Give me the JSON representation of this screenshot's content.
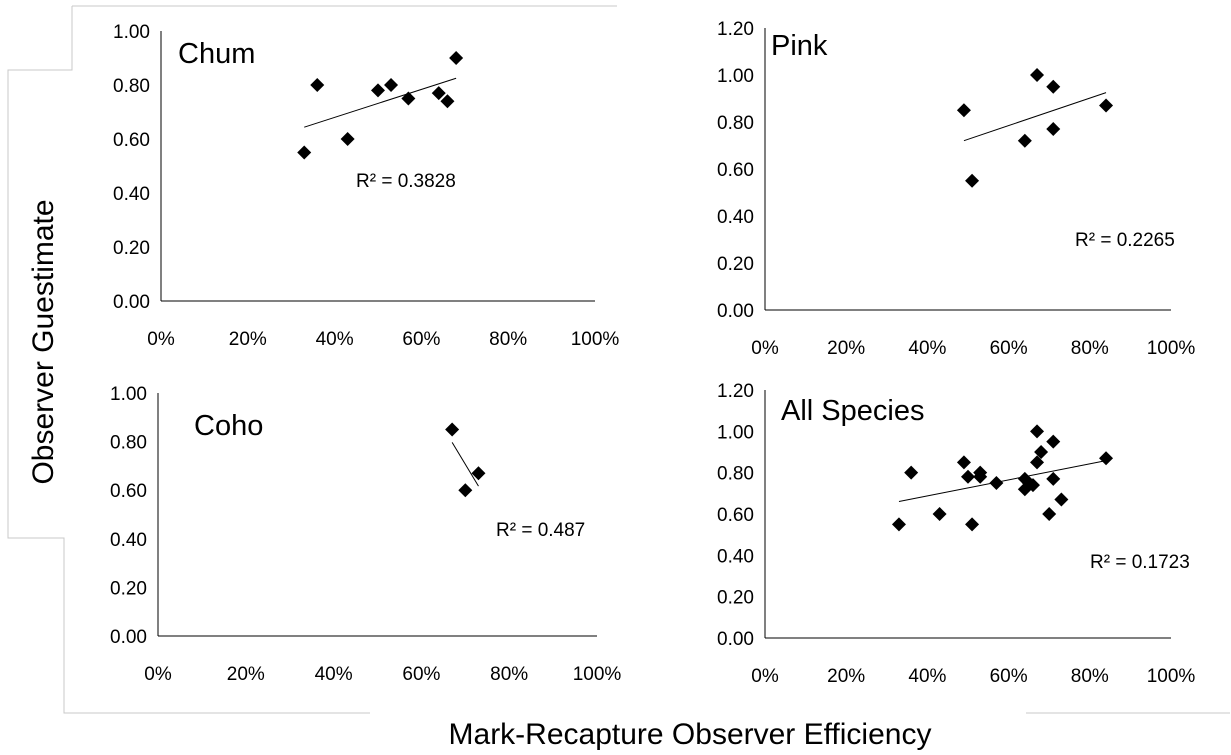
{
  "ylabel": "Observer Guestimate",
  "xlabel": "Mark-Recapture Observer Efficiency",
  "chart_data": [
    {
      "type": "scatter",
      "title": "Chum",
      "annotation": "R² = 0.3828",
      "xlim": [
        0,
        1
      ],
      "ylim": [
        0,
        1
      ],
      "x_ticks": [
        "0%",
        "20%",
        "40%",
        "60%",
        "80%",
        "100%"
      ],
      "y_ticks": [
        "0.00",
        "0.20",
        "0.40",
        "0.60",
        "0.80",
        "1.00"
      ],
      "trendline": true,
      "points": [
        {
          "x": 0.33,
          "y": 0.55
        },
        {
          "x": 0.36,
          "y": 0.8
        },
        {
          "x": 0.43,
          "y": 0.6
        },
        {
          "x": 0.5,
          "y": 0.78
        },
        {
          "x": 0.53,
          "y": 0.8
        },
        {
          "x": 0.57,
          "y": 0.75
        },
        {
          "x": 0.64,
          "y": 0.77
        },
        {
          "x": 0.66,
          "y": 0.74
        },
        {
          "x": 0.68,
          "y": 0.9
        }
      ]
    },
    {
      "type": "scatter",
      "title": "Pink",
      "annotation": "R² = 0.2265",
      "xlim": [
        0,
        1
      ],
      "ylim": [
        0,
        1.2
      ],
      "x_ticks": [
        "0%",
        "20%",
        "40%",
        "60%",
        "80%",
        "100%"
      ],
      "y_ticks": [
        "0.00",
        "0.20",
        "0.40",
        "0.60",
        "0.80",
        "1.00",
        "1.20"
      ],
      "trendline": true,
      "points": [
        {
          "x": 0.49,
          "y": 0.85
        },
        {
          "x": 0.51,
          "y": 0.55
        },
        {
          "x": 0.64,
          "y": 0.72
        },
        {
          "x": 0.67,
          "y": 1.0
        },
        {
          "x": 0.71,
          "y": 0.95
        },
        {
          "x": 0.71,
          "y": 0.77
        },
        {
          "x": 0.84,
          "y": 0.87
        }
      ]
    },
    {
      "type": "scatter",
      "title": "Coho",
      "annotation": "R² = 0.487",
      "xlim": [
        0,
        1
      ],
      "ylim": [
        0,
        1
      ],
      "x_ticks": [
        "0%",
        "20%",
        "40%",
        "60%",
        "80%",
        "100%"
      ],
      "y_ticks": [
        "0.00",
        "0.20",
        "0.40",
        "0.60",
        "0.80",
        "1.00"
      ],
      "trendline": true,
      "points": [
        {
          "x": 0.67,
          "y": 0.85
        },
        {
          "x": 0.7,
          "y": 0.6
        },
        {
          "x": 0.73,
          "y": 0.67
        }
      ]
    },
    {
      "type": "scatter",
      "title": "All Species",
      "annotation": "R² = 0.1723",
      "xlim": [
        0,
        1
      ],
      "ylim": [
        0,
        1.2
      ],
      "x_ticks": [
        "0%",
        "20%",
        "40%",
        "60%",
        "80%",
        "100%"
      ],
      "y_ticks": [
        "0.00",
        "0.20",
        "0.40",
        "0.60",
        "0.80",
        "1.00",
        "1.20"
      ],
      "trendline": true,
      "points": [
        {
          "x": 0.33,
          "y": 0.55
        },
        {
          "x": 0.36,
          "y": 0.8
        },
        {
          "x": 0.43,
          "y": 0.6
        },
        {
          "x": 0.49,
          "y": 0.85
        },
        {
          "x": 0.5,
          "y": 0.78
        },
        {
          "x": 0.51,
          "y": 0.55
        },
        {
          "x": 0.53,
          "y": 0.8
        },
        {
          "x": 0.53,
          "y": 0.78
        },
        {
          "x": 0.57,
          "y": 0.75
        },
        {
          "x": 0.64,
          "y": 0.77
        },
        {
          "x": 0.64,
          "y": 0.72
        },
        {
          "x": 0.65,
          "y": 0.75
        },
        {
          "x": 0.66,
          "y": 0.74
        },
        {
          "x": 0.67,
          "y": 0.85
        },
        {
          "x": 0.67,
          "y": 1.0
        },
        {
          "x": 0.68,
          "y": 0.9
        },
        {
          "x": 0.7,
          "y": 0.6
        },
        {
          "x": 0.71,
          "y": 0.95
        },
        {
          "x": 0.71,
          "y": 0.77
        },
        {
          "x": 0.73,
          "y": 0.67
        },
        {
          "x": 0.84,
          "y": 0.87
        }
      ]
    }
  ]
}
